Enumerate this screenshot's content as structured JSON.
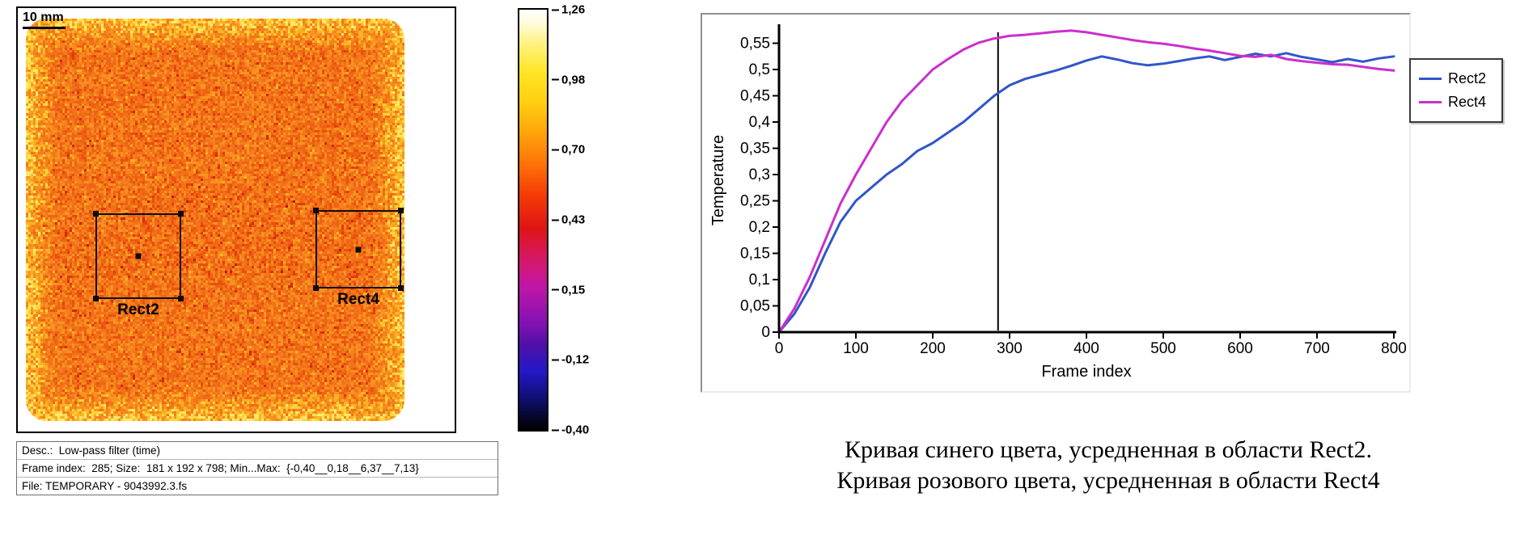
{
  "thermal_panel": {
    "scale_bar_label": "10 mm",
    "rois": [
      {
        "label": "Rect2"
      },
      {
        "label": "Rect4"
      }
    ],
    "colorbar_ticks": [
      "1,26",
      "0,98",
      "0,70",
      "0,43",
      "0,15",
      "-0,12",
      "-0,40"
    ],
    "status_lines": [
      "Desc.:  Low-pass filter (time)",
      "Frame index:  285; Size:  181 x 192 x 798; Min...Max:  {-0,40__0,18__6,37__7,13}",
      "File: TEMPORARY - 9043992.3.fs"
    ]
  },
  "chart_data": {
    "type": "line",
    "title": "",
    "xlabel": "Frame index",
    "ylabel": "Temperature",
    "xlim": [
      0,
      800
    ],
    "ylim": [
      0,
      0.58
    ],
    "grid": false,
    "legend_position": "right-outside",
    "marker_line_x": 285,
    "x_ticks": [
      0,
      100,
      200,
      300,
      400,
      500,
      600,
      700,
      800
    ],
    "x_tick_labels": [
      "0",
      "100",
      "200",
      "300",
      "400",
      "500",
      "600",
      "700",
      "800"
    ],
    "y_ticks": [
      0,
      0.05,
      0.1,
      0.15,
      0.2,
      0.25,
      0.3,
      0.35,
      0.4,
      0.45,
      0.5,
      0.55
    ],
    "y_tick_labels": [
      "0",
      "0,05",
      "0,1",
      "0,15",
      "0,2",
      "0,25",
      "0,3",
      "0,35",
      "0,4",
      "0,45",
      "0,5",
      "0,55"
    ],
    "series": [
      {
        "name": "Rect2",
        "color": "#3056c8",
        "x": [
          0,
          20,
          40,
          60,
          80,
          100,
          120,
          140,
          160,
          180,
          200,
          220,
          240,
          260,
          280,
          300,
          320,
          340,
          360,
          380,
          400,
          420,
          440,
          460,
          480,
          500,
          520,
          540,
          560,
          580,
          600,
          620,
          640,
          660,
          680,
          700,
          720,
          740,
          760,
          780,
          800
        ],
        "y": [
          0,
          0.035,
          0.085,
          0.15,
          0.21,
          0.25,
          0.275,
          0.3,
          0.32,
          0.345,
          0.36,
          0.38,
          0.4,
          0.425,
          0.45,
          0.47,
          0.482,
          0.49,
          0.498,
          0.507,
          0.517,
          0.525,
          0.519,
          0.512,
          0.508,
          0.511,
          0.516,
          0.521,
          0.525,
          0.518,
          0.524,
          0.53,
          0.525,
          0.531,
          0.524,
          0.519,
          0.514,
          0.52,
          0.515,
          0.521,
          0.525
        ]
      },
      {
        "name": "Rect4",
        "color": "#cc2ecc",
        "x": [
          0,
          20,
          40,
          60,
          80,
          100,
          120,
          140,
          160,
          180,
          200,
          220,
          240,
          260,
          280,
          300,
          320,
          340,
          360,
          380,
          400,
          420,
          440,
          460,
          480,
          500,
          520,
          540,
          560,
          580,
          600,
          620,
          640,
          660,
          680,
          700,
          720,
          740,
          760,
          780,
          800
        ],
        "y": [
          0,
          0.045,
          0.105,
          0.175,
          0.245,
          0.3,
          0.35,
          0.4,
          0.44,
          0.47,
          0.5,
          0.52,
          0.538,
          0.551,
          0.559,
          0.564,
          0.566,
          0.569,
          0.572,
          0.574,
          0.571,
          0.566,
          0.561,
          0.556,
          0.552,
          0.549,
          0.545,
          0.54,
          0.536,
          0.531,
          0.526,
          0.524,
          0.528,
          0.52,
          0.516,
          0.513,
          0.51,
          0.509,
          0.505,
          0.501,
          0.498
        ]
      }
    ]
  },
  "caption": {
    "line1": "Кривая синего цвета, усредненная в области Rect2.",
    "line2": "Кривая розового цвета, усредненная в области Rect4"
  },
  "colors": {
    "rect2_curve": "#3056c8",
    "rect4_curve": "#cc2ecc",
    "marker_line": "#000000"
  }
}
